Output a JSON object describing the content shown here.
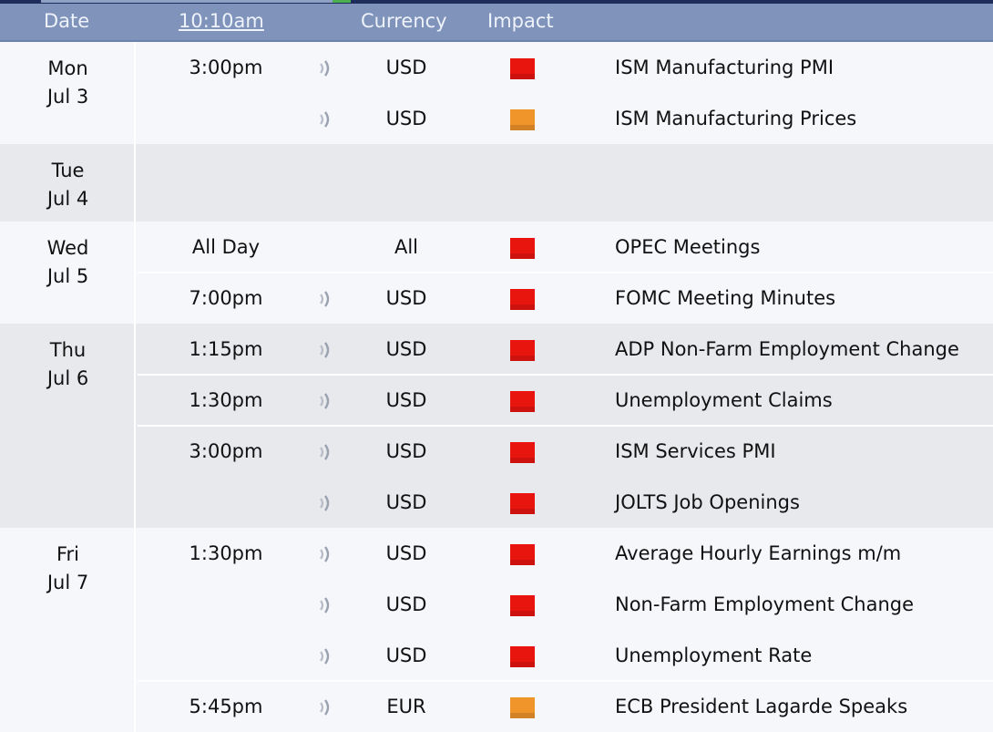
{
  "header": {
    "date": "Date",
    "time": "10:10am",
    "currency": "Currency",
    "impact": "Impact"
  },
  "colors": {
    "high_impact": "#e8150e",
    "medium_impact": "#f0952a",
    "header_bg": "#7f93bb"
  },
  "days": [
    {
      "day": "Mon",
      "date": "Jul 3",
      "events": [
        {
          "time": "3:00pm",
          "sound": true,
          "currency": "USD",
          "impact": "high",
          "title": "ISM Manufacturing PMI"
        },
        {
          "time": "",
          "sound": true,
          "currency": "USD",
          "impact": "medium",
          "title": "ISM Manufacturing Prices"
        }
      ]
    },
    {
      "day": "Tue",
      "date": "Jul 4",
      "events": []
    },
    {
      "day": "Wed",
      "date": "Jul 5",
      "events": [
        {
          "time": "All Day",
          "sound": false,
          "currency": "All",
          "impact": "high",
          "title": "OPEC Meetings"
        },
        {
          "time": "7:00pm",
          "sound": true,
          "currency": "USD",
          "impact": "high",
          "title": "FOMC Meeting Minutes"
        }
      ]
    },
    {
      "day": "Thu",
      "date": "Jul 6",
      "events": [
        {
          "time": "1:15pm",
          "sound": true,
          "currency": "USD",
          "impact": "high",
          "title": "ADP Non-Farm Employment Change"
        },
        {
          "time": "1:30pm",
          "sound": true,
          "currency": "USD",
          "impact": "high",
          "title": "Unemployment Claims"
        },
        {
          "time": "3:00pm",
          "sound": true,
          "currency": "USD",
          "impact": "high",
          "title": "ISM Services PMI"
        },
        {
          "time": "",
          "sound": true,
          "currency": "USD",
          "impact": "high",
          "title": "JOLTS Job Openings"
        }
      ]
    },
    {
      "day": "Fri",
      "date": "Jul 7",
      "events": [
        {
          "time": "1:30pm",
          "sound": true,
          "currency": "USD",
          "impact": "high",
          "title": "Average Hourly Earnings m/m"
        },
        {
          "time": "",
          "sound": true,
          "currency": "USD",
          "impact": "high",
          "title": "Non-Farm Employment Change"
        },
        {
          "time": "",
          "sound": true,
          "currency": "USD",
          "impact": "high",
          "title": "Unemployment Rate"
        },
        {
          "time": "5:45pm",
          "sound": true,
          "currency": "EUR",
          "impact": "medium",
          "title": "ECB President Lagarde Speaks"
        }
      ]
    }
  ]
}
